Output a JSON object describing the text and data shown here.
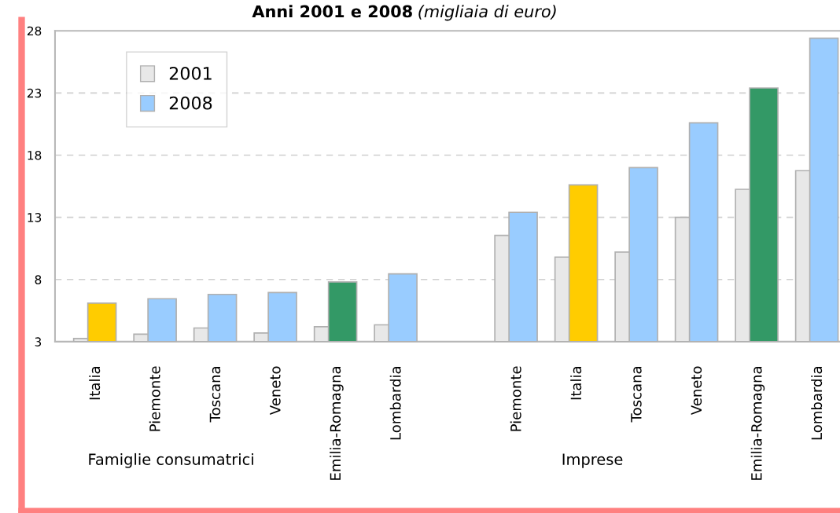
{
  "chart_data": {
    "type": "bar",
    "title": "Anni 2001 e 2008",
    "subtitle": "(migliaia di euro)",
    "categories": [
      "Italia",
      "Piemonte",
      "Toscana",
      "Veneto",
      "Emilia-Romagna",
      "Lombardia",
      null,
      "Piemonte",
      "Italia",
      "Toscana",
      "Veneto",
      "Emilia-Romagna",
      "Lombardia"
    ],
    "series": [
      {
        "name": "2001",
        "color": "#e8e8e8",
        "values": [
          3.25,
          3.6,
          4.1,
          3.7,
          4.2,
          4.35,
          null,
          11.55,
          9.8,
          10.2,
          13.0,
          15.25,
          16.75
        ]
      },
      {
        "name": "2008",
        "color": "#99ccff",
        "colors": [
          "#ffcc00",
          "#99ccff",
          "#99ccff",
          "#99ccff",
          "#339966",
          "#99ccff",
          "#99ccff",
          "#99ccff",
          "#ffcc00",
          "#99ccff",
          "#99ccff",
          "#339966",
          "#99ccff"
        ],
        "values": [
          6.1,
          6.45,
          6.8,
          6.95,
          7.8,
          8.45,
          null,
          13.4,
          15.6,
          17.0,
          20.6,
          23.4,
          27.4
        ]
      }
    ],
    "ylim": [
      3,
      28
    ],
    "yticks": [
      3,
      8,
      13,
      18,
      23,
      28
    ],
    "grid": "y",
    "legend": "top left",
    "annotations": [
      "Famiglie consumatrici",
      "Imprese"
    ]
  }
}
